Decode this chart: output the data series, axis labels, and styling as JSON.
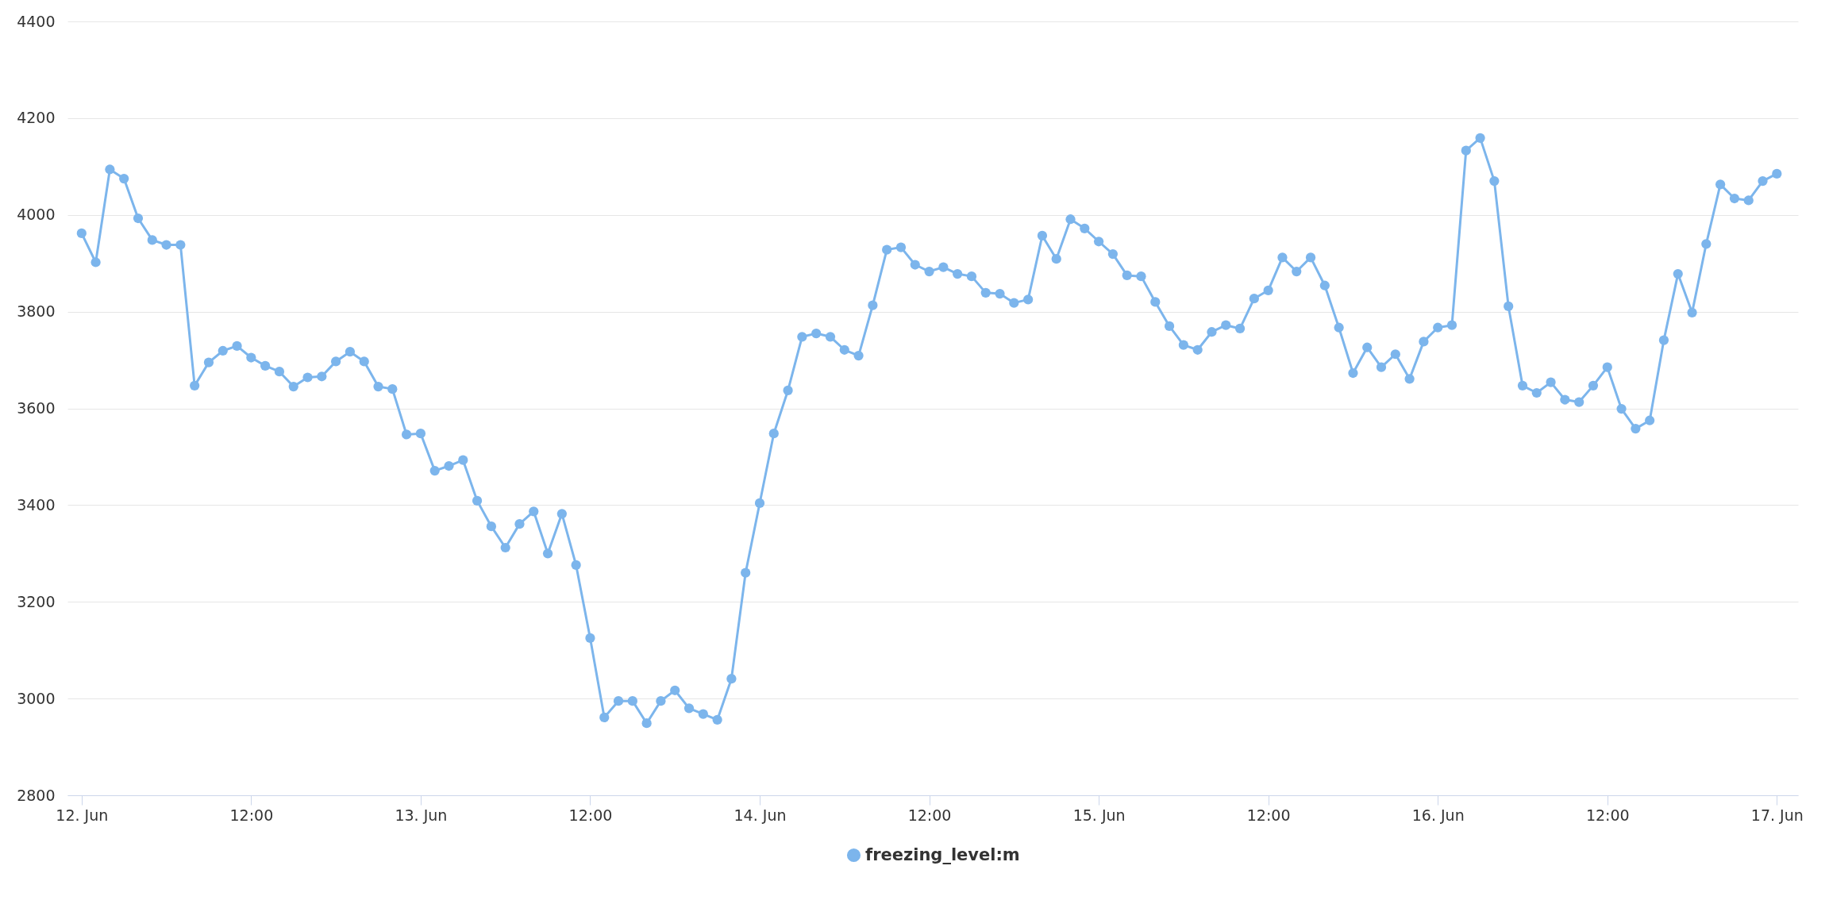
{
  "chart_data": {
    "type": "line",
    "x": [
      "--06-12T00:00",
      "--06-12T01:00",
      "--06-12T02:00",
      "--06-12T03:00",
      "--06-12T04:00",
      "--06-12T05:00",
      "--06-12T06:00",
      "--06-12T07:00",
      "--06-12T08:00",
      "--06-12T09:00",
      "--06-12T10:00",
      "--06-12T11:00",
      "--06-12T12:00",
      "--06-12T13:00",
      "--06-12T14:00",
      "--06-12T15:00",
      "--06-12T16:00",
      "--06-12T17:00",
      "--06-12T18:00",
      "--06-12T19:00",
      "--06-12T20:00",
      "--06-12T21:00",
      "--06-12T22:00",
      "--06-12T23:00",
      "--06-13T00:00",
      "--06-13T01:00",
      "--06-13T02:00",
      "--06-13T03:00",
      "--06-13T04:00",
      "--06-13T05:00",
      "--06-13T06:00",
      "--06-13T07:00",
      "--06-13T08:00",
      "--06-13T09:00",
      "--06-13T10:00",
      "--06-13T11:00",
      "--06-13T12:00",
      "--06-13T13:00",
      "--06-13T14:00",
      "--06-13T15:00",
      "--06-13T16:00",
      "--06-13T17:00",
      "--06-13T18:00",
      "--06-13T19:00",
      "--06-13T20:00",
      "--06-13T21:00",
      "--06-13T22:00",
      "--06-13T23:00",
      "--06-14T00:00",
      "--06-14T01:00",
      "--06-14T02:00",
      "--06-14T03:00",
      "--06-14T04:00",
      "--06-14T05:00",
      "--06-14T06:00",
      "--06-14T07:00",
      "--06-14T08:00",
      "--06-14T09:00",
      "--06-14T10:00",
      "--06-14T11:00",
      "--06-14T12:00",
      "--06-14T13:00",
      "--06-14T14:00",
      "--06-14T15:00",
      "--06-14T16:00",
      "--06-14T17:00",
      "--06-14T18:00",
      "--06-14T19:00",
      "--06-14T20:00",
      "--06-14T21:00",
      "--06-14T22:00",
      "--06-14T23:00",
      "--06-15T00:00",
      "--06-15T01:00",
      "--06-15T02:00",
      "--06-15T03:00",
      "--06-15T04:00",
      "--06-15T05:00",
      "--06-15T06:00",
      "--06-15T07:00",
      "--06-15T08:00",
      "--06-15T09:00",
      "--06-15T10:00",
      "--06-15T11:00",
      "--06-15T12:00",
      "--06-15T13:00",
      "--06-15T14:00",
      "--06-15T15:00",
      "--06-15T16:00",
      "--06-15T17:00",
      "--06-15T18:00",
      "--06-15T19:00",
      "--06-15T20:00",
      "--06-15T21:00",
      "--06-15T22:00",
      "--06-15T23:00",
      "--06-16T00:00",
      "--06-16T01:00",
      "--06-16T02:00",
      "--06-16T03:00",
      "--06-16T04:00",
      "--06-16T05:00",
      "--06-16T06:00",
      "--06-16T07:00",
      "--06-16T08:00",
      "--06-16T09:00",
      "--06-16T10:00",
      "--06-16T11:00",
      "--06-16T12:00",
      "--06-16T13:00",
      "--06-16T14:00",
      "--06-16T15:00",
      "--06-16T16:00",
      "--06-16T17:00",
      "--06-16T18:00",
      "--06-16T19:00",
      "--06-16T20:00",
      "--06-16T21:00",
      "--06-16T22:00",
      "--06-16T23:00",
      "--06-17T00:00"
    ],
    "series": [
      {
        "name": "freezing_level:m",
        "color": "#7cb5ec",
        "values": [
          3962,
          3902,
          4094,
          4075,
          3993,
          3948,
          3938,
          3938,
          3647,
          3695,
          3719,
          3729,
          3705,
          3688,
          3676,
          3645,
          3664,
          3666,
          3697,
          3717,
          3697,
          3645,
          3640,
          3546,
          3548,
          3471,
          3481,
          3493,
          3409,
          3356,
          3312,
          3361,
          3387,
          3300,
          3382,
          3276,
          3125,
          2961,
          2995,
          2995,
          2949,
          2995,
          3017,
          2980,
          2968,
          2956,
          3041,
          3260,
          3404,
          3548,
          3637,
          3748,
          3755,
          3748,
          3721,
          3709,
          3813,
          3928,
          3933,
          3897,
          3883,
          3892,
          3878,
          3873,
          3839,
          3837,
          3818,
          3825,
          3957,
          3909,
          3991,
          3972,
          3945,
          3919,
          3875,
          3873,
          3820,
          3770,
          3731,
          3721,
          3758,
          3772,
          3765,
          3827,
          3844,
          3912,
          3883,
          3912,
          3854,
          3767,
          3673,
          3726,
          3685,
          3712,
          3661,
          3738,
          3767,
          3772,
          4133,
          4159,
          4070,
          3811,
          3647,
          3632,
          3654,
          3618,
          3613,
          3647,
          3685,
          3599,
          3558,
          3575,
          3741,
          3878,
          3798,
          3940,
          4063,
          4034,
          4030,
          4070,
          4085
        ]
      }
    ],
    "xlim": [
      "--06-11T23:00",
      "--06-17T01:30"
    ],
    "xticks": [
      {
        "value": "--06-12T00:00",
        "label": "12. Jun"
      },
      {
        "value": "--06-12T12:00",
        "label": "12:00"
      },
      {
        "value": "--06-13T00:00",
        "label": "13. Jun"
      },
      {
        "value": "--06-13T12:00",
        "label": "12:00"
      },
      {
        "value": "--06-14T00:00",
        "label": "14. Jun"
      },
      {
        "value": "--06-14T12:00",
        "label": "12:00"
      },
      {
        "value": "--06-15T00:00",
        "label": "15. Jun"
      },
      {
        "value": "--06-15T12:00",
        "label": "12:00"
      },
      {
        "value": "--06-16T00:00",
        "label": "16. Jun"
      },
      {
        "value": "--06-16T12:00",
        "label": "12:00"
      },
      {
        "value": "--06-17T00:00",
        "label": "17. Jun"
      }
    ],
    "ylim": [
      2800,
      4400
    ],
    "yticks": [
      2800,
      3000,
      3200,
      3400,
      3600,
      3800,
      4000,
      4200,
      4400
    ],
    "grid": "y",
    "legend": "bottom",
    "marker": "circle",
    "line_style": "solid"
  }
}
